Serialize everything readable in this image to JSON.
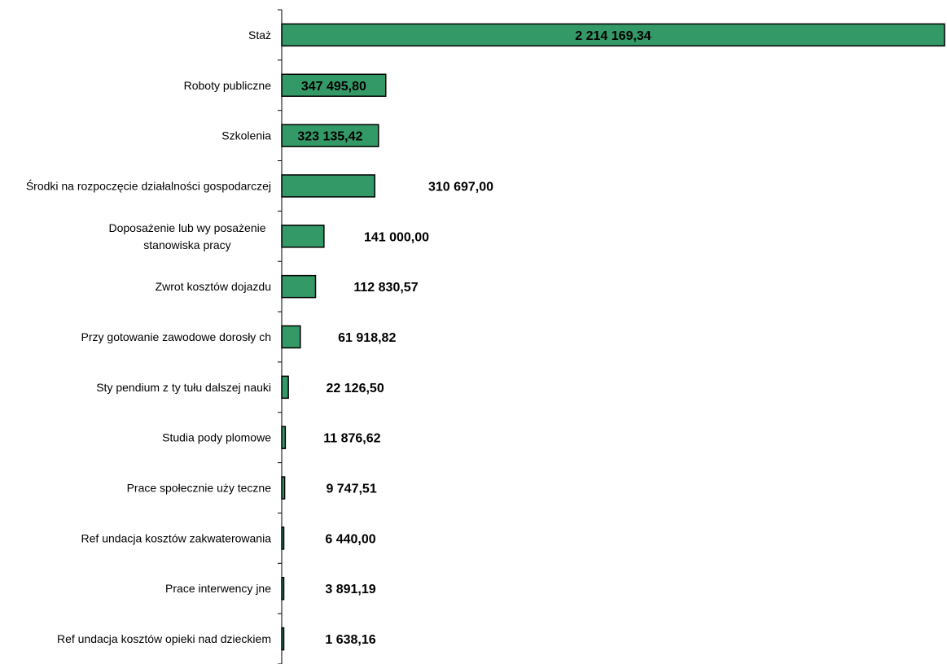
{
  "chart_data": {
    "type": "bar",
    "orientation": "horizontal",
    "title": "",
    "xlabel": "",
    "ylabel": "",
    "grid": false,
    "legend": "none",
    "bar_color": "#339966",
    "categories": [
      [
        "Staż"
      ],
      [
        "Roboty  publiczne"
      ],
      [
        "Szkolenia"
      ],
      [
        "Środki na rozpoczęcie działalności gospodarczej"
      ],
      [
        "Doposażenie lub wy posażenie",
        "stanowiska pracy"
      ],
      [
        "Zwrot kosztów dojazdu"
      ],
      [
        "Przy gotowanie zawodowe dorosły ch"
      ],
      [
        "Sty pendium z ty tułu dalszej nauki"
      ],
      [
        "Studia pody plomowe"
      ],
      [
        "Prace społecznie uży teczne"
      ],
      [
        "Ref undacja kosztów zakwaterowania"
      ],
      [
        "Prace interwency jne"
      ],
      [
        "Ref undacja kosztów opieki nad dzieckiem"
      ]
    ],
    "values": [
      2214169.34,
      347495.8,
      323135.42,
      310697.0,
      141000.0,
      112830.57,
      61918.82,
      22126.5,
      11876.62,
      9747.51,
      6440.0,
      3891.19,
      1638.16
    ],
    "value_labels": [
      "2 214 169,34",
      "347 495,80",
      "323 135,42",
      "310 697,00",
      "141 000,00",
      "112 830,57",
      "61 918,82",
      "22 126,50",
      "11 876,62",
      "9 747,51",
      "6 440,00",
      "3 891,19",
      "1 638,16"
    ],
    "label_inside_bar": [
      true,
      true,
      true,
      false,
      false,
      false,
      false,
      false,
      false,
      false,
      false,
      false,
      false
    ]
  }
}
